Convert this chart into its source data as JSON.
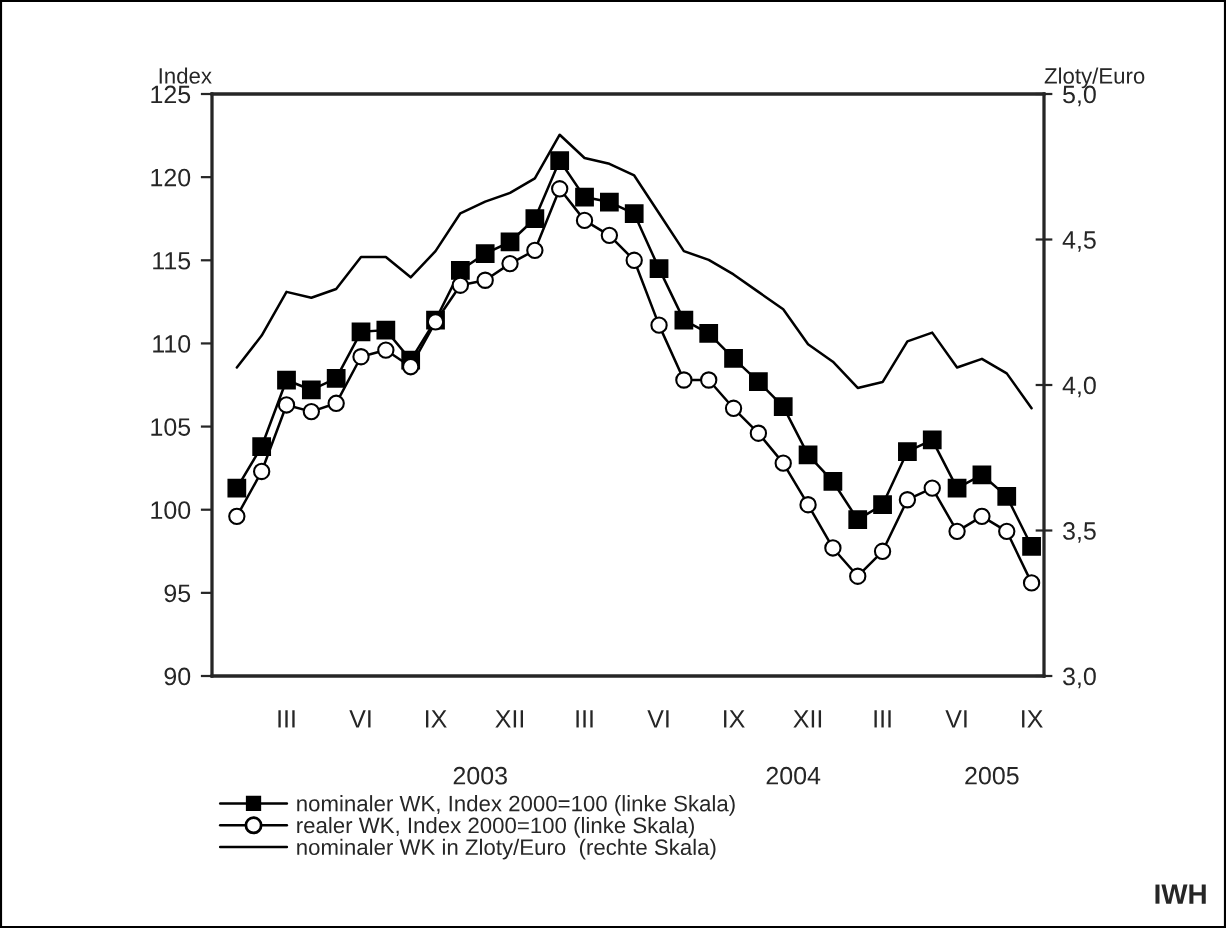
{
  "chart_data": {
    "type": "line",
    "ylabel": "Index",
    "y2label": "Zloty/Euro",
    "categories": [
      null,
      null,
      "III",
      null,
      null,
      "VI",
      null,
      null,
      "IX",
      null,
      null,
      "XII",
      null,
      null,
      "III",
      null,
      null,
      "VI",
      null,
      null,
      "IX",
      null,
      null,
      "XII",
      null,
      null,
      "III",
      null,
      null,
      "VI",
      null,
      null,
      "IX"
    ],
    "series": [
      {
        "name": "nominaler WK, Index 2000=100 (linke Skala)",
        "color": "#000000",
        "marker": "square",
        "values": [
          101.3,
          103.8,
          107.8,
          107.2,
          107.9,
          110.7,
          110.8,
          109.0,
          111.4,
          114.4,
          115.4,
          116.1,
          117.5,
          121.0,
          118.8,
          118.5,
          117.8,
          114.5,
          111.4,
          110.6,
          109.1,
          107.7,
          106.2,
          103.3,
          101.7,
          99.4,
          100.3,
          103.5,
          104.2,
          101.3,
          102.1,
          100.8,
          97.8
        ]
      },
      {
        "name": "realer WK, Index 2000=100 (linke Skala)",
        "color": "#000000",
        "marker": "circle",
        "values": [
          99.6,
          102.3,
          106.3,
          105.9,
          106.4,
          109.2,
          109.6,
          108.6,
          111.3,
          113.5,
          113.8,
          114.8,
          115.6,
          119.3,
          117.4,
          116.5,
          115.0,
          111.1,
          107.8,
          107.8,
          106.1,
          104.6,
          102.8,
          100.3,
          97.7,
          96.0,
          97.5,
          100.6,
          101.3,
          98.7,
          99.6,
          98.7,
          95.6
        ]
      },
      {
        "name": "nominaler WK in Zloty/Euro  (rechte Skala)",
        "color": "#000000",
        "axis": "y2",
        "values": [
          4.06,
          4.17,
          4.32,
          4.3,
          4.33,
          4.44,
          4.44,
          4.37,
          4.46,
          4.59,
          4.63,
          4.66,
          4.71,
          4.86,
          4.78,
          4.76,
          4.72,
          4.59,
          4.46,
          4.43,
          4.38,
          4.32,
          4.26,
          4.14,
          4.08,
          3.99,
          4.01,
          4.15,
          4.18,
          4.06,
          4.09,
          4.04,
          3.92
        ]
      }
    ],
    "ylim": [
      90,
      125
    ],
    "yticks": [
      90,
      95,
      100,
      105,
      110,
      115,
      120,
      125
    ],
    "y2lim": [
      3.0,
      5.0
    ],
    "y2ticks": [
      {
        "value": 3.0,
        "label": "3,0"
      },
      {
        "value": 3.5,
        "label": "3,5"
      },
      {
        "value": 4.0,
        "label": "4,0"
      },
      {
        "value": 4.5,
        "label": "4,5"
      },
      {
        "value": 5.0,
        "label": "5,0"
      }
    ],
    "legend": "bottom",
    "grid": false,
    "annotations": [
      "2003",
      "2004",
      "2005",
      "IWH"
    ]
  }
}
